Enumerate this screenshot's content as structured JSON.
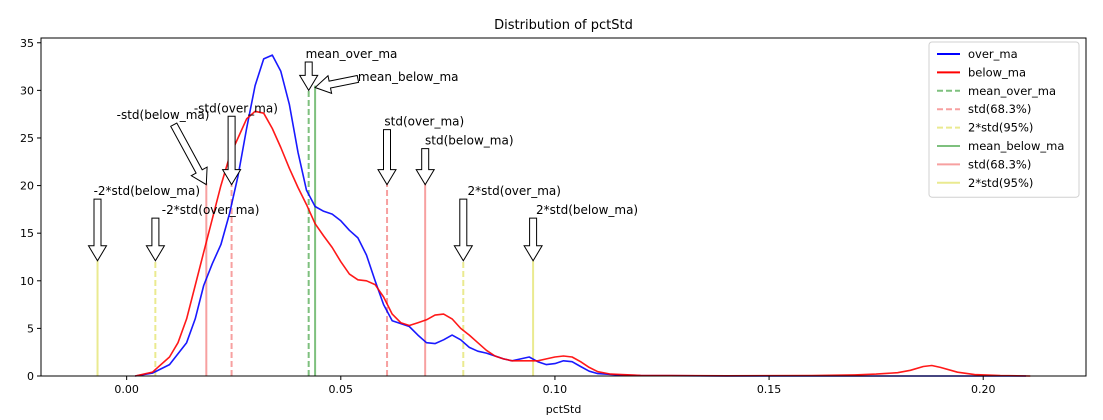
{
  "chart_data": {
    "type": "line",
    "title": "Distribution of pctStd",
    "xlabel": "pctStd",
    "ylabel": "",
    "xlim": [
      -0.02,
      0.224
    ],
    "ylim": [
      0,
      35.5
    ],
    "xticks": [
      0.0,
      0.05,
      0.1,
      0.15,
      0.2
    ],
    "xtick_labels": [
      "0.00",
      "0.05",
      "0.10",
      "0.15",
      "0.20"
    ],
    "yticks": [
      0,
      5,
      10,
      15,
      20,
      25,
      30,
      35
    ],
    "ytick_labels": [
      "0",
      "5",
      "10",
      "15",
      "20",
      "25",
      "30",
      "35"
    ],
    "grid": false,
    "legend_position": "top-right",
    "series": [
      {
        "name": "over_ma",
        "color": "#0000ff",
        "points": [
          [
            0.002,
            0
          ],
          [
            0.006,
            0.3
          ],
          [
            0.01,
            1.2
          ],
          [
            0.014,
            3.5
          ],
          [
            0.016,
            6
          ],
          [
            0.018,
            9.5
          ],
          [
            0.02,
            11.8
          ],
          [
            0.022,
            13.8
          ],
          [
            0.024,
            17
          ],
          [
            0.026,
            21
          ],
          [
            0.028,
            26
          ],
          [
            0.03,
            30.5
          ],
          [
            0.032,
            33.3
          ],
          [
            0.034,
            33.7
          ],
          [
            0.036,
            32
          ],
          [
            0.038,
            28.5
          ],
          [
            0.04,
            23.5
          ],
          [
            0.042,
            19.5
          ],
          [
            0.044,
            17.8
          ],
          [
            0.046,
            17.3
          ],
          [
            0.048,
            17
          ],
          [
            0.05,
            16.3
          ],
          [
            0.052,
            15.3
          ],
          [
            0.054,
            14.5
          ],
          [
            0.056,
            12.7
          ],
          [
            0.058,
            10
          ],
          [
            0.06,
            7.5
          ],
          [
            0.062,
            5.8
          ],
          [
            0.064,
            5.5
          ],
          [
            0.066,
            5.2
          ],
          [
            0.068,
            4.3
          ],
          [
            0.07,
            3.5
          ],
          [
            0.072,
            3.4
          ],
          [
            0.074,
            3.8
          ],
          [
            0.076,
            4.3
          ],
          [
            0.078,
            3.8
          ],
          [
            0.08,
            3
          ],
          [
            0.082,
            2.6
          ],
          [
            0.084,
            2.4
          ],
          [
            0.086,
            2.1
          ],
          [
            0.088,
            1.8
          ],
          [
            0.09,
            1.6
          ],
          [
            0.092,
            1.8
          ],
          [
            0.094,
            2.0
          ],
          [
            0.096,
            1.5
          ],
          [
            0.098,
            1.2
          ],
          [
            0.1,
            1.3
          ],
          [
            0.102,
            1.6
          ],
          [
            0.104,
            1.5
          ],
          [
            0.106,
            1.0
          ],
          [
            0.108,
            0.5
          ],
          [
            0.11,
            0.25
          ],
          [
            0.115,
            0.1
          ],
          [
            0.12,
            0.04
          ],
          [
            0.14,
            0.01
          ],
          [
            0.16,
            0
          ],
          [
            0.21,
            0
          ]
        ]
      },
      {
        "name": "below_ma",
        "color": "#ff0000",
        "points": [
          [
            0.002,
            0
          ],
          [
            0.006,
            0.4
          ],
          [
            0.01,
            2
          ],
          [
            0.012,
            3.5
          ],
          [
            0.014,
            6
          ],
          [
            0.016,
            9.5
          ],
          [
            0.018,
            13
          ],
          [
            0.02,
            16.5
          ],
          [
            0.022,
            20
          ],
          [
            0.024,
            23
          ],
          [
            0.026,
            25
          ],
          [
            0.028,
            27
          ],
          [
            0.03,
            27.8
          ],
          [
            0.032,
            27.6
          ],
          [
            0.034,
            26
          ],
          [
            0.036,
            24
          ],
          [
            0.038,
            21.8
          ],
          [
            0.04,
            19.8
          ],
          [
            0.042,
            18
          ],
          [
            0.044,
            16
          ],
          [
            0.046,
            14.7
          ],
          [
            0.048,
            13.5
          ],
          [
            0.05,
            12
          ],
          [
            0.052,
            10.7
          ],
          [
            0.054,
            10.1
          ],
          [
            0.056,
            10
          ],
          [
            0.058,
            9.6
          ],
          [
            0.06,
            8.3
          ],
          [
            0.062,
            6.5
          ],
          [
            0.064,
            5.6
          ],
          [
            0.066,
            5.3
          ],
          [
            0.068,
            5.6
          ],
          [
            0.07,
            5.9
          ],
          [
            0.072,
            6.4
          ],
          [
            0.074,
            6.5
          ],
          [
            0.076,
            6
          ],
          [
            0.078,
            5
          ],
          [
            0.08,
            4.3
          ],
          [
            0.082,
            3.5
          ],
          [
            0.084,
            2.7
          ],
          [
            0.086,
            2.1
          ],
          [
            0.088,
            1.8
          ],
          [
            0.09,
            1.6
          ],
          [
            0.092,
            1.6
          ],
          [
            0.094,
            1.6
          ],
          [
            0.096,
            1.6
          ],
          [
            0.098,
            1.8
          ],
          [
            0.1,
            2.0
          ],
          [
            0.102,
            2.1
          ],
          [
            0.104,
            2.0
          ],
          [
            0.106,
            1.5
          ],
          [
            0.108,
            0.9
          ],
          [
            0.11,
            0.45
          ],
          [
            0.113,
            0.2
          ],
          [
            0.12,
            0.06
          ],
          [
            0.14,
            0.02
          ],
          [
            0.16,
            0.04
          ],
          [
            0.17,
            0.12
          ],
          [
            0.175,
            0.2
          ],
          [
            0.18,
            0.35
          ],
          [
            0.183,
            0.6
          ],
          [
            0.186,
            1.0
          ],
          [
            0.188,
            1.1
          ],
          [
            0.19,
            0.9
          ],
          [
            0.194,
            0.4
          ],
          [
            0.198,
            0.15
          ],
          [
            0.204,
            0.04
          ],
          [
            0.211,
            0
          ]
        ]
      }
    ],
    "vlines": [
      {
        "x": 0.0425,
        "ymax": 30.0,
        "color": "#7ec07e",
        "dash": true
      },
      {
        "x": 0.0245,
        "ymax": 20.3,
        "color": "#f7a0a0",
        "dash": true
      },
      {
        "x": 0.0608,
        "ymax": 20.3,
        "color": "#f7a0a0",
        "dash": true
      },
      {
        "x": 0.0067,
        "ymax": 12.1,
        "color": "#eaea90",
        "dash": true
      },
      {
        "x": 0.0786,
        "ymax": 12.1,
        "color": "#eaea90",
        "dash": true
      },
      {
        "x": 0.044,
        "ymax": 30.5,
        "color": "#7ec07e",
        "dash": false
      },
      {
        "x": 0.0186,
        "ymax": 20.3,
        "color": "#f7a0a0",
        "dash": false
      },
      {
        "x": 0.0697,
        "ymax": 20.3,
        "color": "#f7a0a0",
        "dash": false
      },
      {
        "x": -0.0068,
        "ymax": 12.1,
        "color": "#eaea90",
        "dash": false
      },
      {
        "x": 0.0949,
        "ymax": 12.1,
        "color": "#eaea90",
        "dash": false
      }
    ],
    "annotations": [
      {
        "text": "mean_over_ma",
        "anchor": "mid",
        "tx": 0.0525,
        "ty": 33.4,
        "kind": "down",
        "x": 0.0425,
        "ytip": 30.0
      },
      {
        "text": "mean_below_ma",
        "anchor": "start",
        "tx": 0.054,
        "ty": 31.0,
        "kind": "diag",
        "x": 0.044,
        "ytip": 30.3,
        "xtail": 0.054,
        "ytail": 31.2
      },
      {
        "text": "-std(below_ma)",
        "anchor": "mid",
        "tx": 0.0085,
        "ty": 27.0,
        "kind": "diag",
        "x": 0.0186,
        "ytip": 20.1,
        "xtail": 0.011,
        "ytail": 26.4
      },
      {
        "text": "-std(over_ma)",
        "anchor": "mid",
        "tx": 0.0255,
        "ty": 27.7,
        "kind": "down",
        "x": 0.0245,
        "ytip": 20.1
      },
      {
        "text": "std(over_ma)",
        "anchor": "mid",
        "tx": 0.0695,
        "ty": 26.3,
        "kind": "down",
        "x": 0.0608,
        "ytip": 20.1
      },
      {
        "text": "std(below_ma)",
        "anchor": "mid",
        "tx": 0.08,
        "ty": 24.3,
        "kind": "down",
        "x": 0.0697,
        "ytip": 20.1
      },
      {
        "text": "-2*std(below_ma)",
        "anchor": "mid",
        "tx": 0.0047,
        "ty": 19.0,
        "kind": "down",
        "x": -0.0068,
        "ytip": 12.1
      },
      {
        "text": "-2*std(over_ma)",
        "anchor": "mid",
        "tx": 0.0196,
        "ty": 17.0,
        "kind": "down",
        "x": 0.0067,
        "ytip": 12.1
      },
      {
        "text": "2*std(over_ma)",
        "anchor": "mid",
        "tx": 0.0905,
        "ty": 19.0,
        "kind": "down",
        "x": 0.0786,
        "ytip": 12.1
      },
      {
        "text": "2*std(below_ma)",
        "anchor": "mid",
        "tx": 0.1075,
        "ty": 17.0,
        "kind": "down",
        "x": 0.0949,
        "ytip": 12.1
      }
    ],
    "legend": [
      {
        "label": "over_ma",
        "color": "#0000ff",
        "style": "solid",
        "width": 2
      },
      {
        "label": "below_ma",
        "color": "#ff0000",
        "style": "solid",
        "width": 2
      },
      {
        "label": "mean_over_ma",
        "color": "#7ec07e",
        "style": "dash",
        "width": 2
      },
      {
        "label": "std(68.3%)",
        "color": "#f7a0a0",
        "style": "dash",
        "width": 2
      },
      {
        "label": "2*std(95%)",
        "color": "#eaea90",
        "style": "dash",
        "width": 2
      },
      {
        "label": "mean_below_ma",
        "color": "#7ec07e",
        "style": "solid",
        "width": 2
      },
      {
        "label": "std(68.3%)",
        "color": "#f7a0a0",
        "style": "solid",
        "width": 2
      },
      {
        "label": "2*std(95%)",
        "color": "#eaea90",
        "style": "solid",
        "width": 2
      }
    ]
  }
}
